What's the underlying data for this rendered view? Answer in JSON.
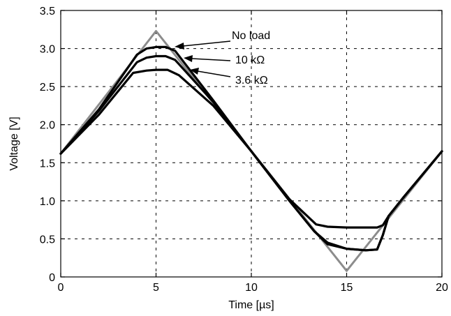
{
  "chart_data": {
    "type": "line",
    "title": "",
    "xlabel": "Time [µs]",
    "ylabel": "Voltage [V]",
    "xlim": [
      0,
      20
    ],
    "ylim": [
      0,
      3.5
    ],
    "xticks": [
      0,
      5,
      10,
      15,
      20
    ],
    "xtick_labels": [
      "0",
      "5",
      "10",
      "15",
      "20"
    ],
    "yticks": [
      0,
      0.5,
      1.0,
      1.5,
      2.0,
      2.5,
      3.0,
      3.5
    ],
    "ytick_labels": [
      "0",
      "0.5",
      "1.0",
      "1.5",
      "2.0",
      "2.5",
      "3.0",
      "3.5"
    ],
    "grid": true,
    "series": [
      {
        "color": "#8c8c8c",
        "x": [
          0,
          5,
          15,
          20
        ],
        "y": [
          1.62,
          3.23,
          0.08,
          1.65
        ]
      },
      {
        "color": "#000000",
        "x": [
          0,
          2,
          4,
          4.5,
          5,
          5.5,
          6,
          8,
          10,
          12,
          13.3,
          14,
          15,
          16,
          16.6,
          16.9,
          17.2,
          18,
          20
        ],
        "y": [
          1.62,
          2.2,
          2.92,
          3.0,
          3.02,
          3.02,
          2.97,
          2.32,
          1.65,
          1.0,
          0.6,
          0.45,
          0.37,
          0.35,
          0.36,
          0.55,
          0.8,
          1.05,
          1.65
        ]
      },
      {
        "color": "#000000",
        "x": [
          0,
          2,
          4,
          4.5,
          5,
          5.5,
          6,
          8,
          10,
          12,
          13.3,
          14,
          15,
          16,
          16.6,
          16.9,
          17.2,
          18,
          20
        ],
        "y": [
          1.62,
          2.18,
          2.82,
          2.88,
          2.9,
          2.9,
          2.85,
          2.3,
          1.65,
          1.0,
          0.6,
          0.43,
          0.37,
          0.35,
          0.36,
          0.55,
          0.8,
          1.05,
          1.65
        ]
      },
      {
        "color": "#000000",
        "x": [
          0,
          2,
          3.8,
          4.5,
          5,
          5.6,
          6.2,
          8,
          10,
          12,
          13.4,
          14,
          15,
          16,
          16.6,
          16.9,
          17.2,
          18,
          20
        ],
        "y": [
          1.62,
          2.13,
          2.68,
          2.71,
          2.72,
          2.72,
          2.65,
          2.25,
          1.65,
          1.02,
          0.69,
          0.66,
          0.65,
          0.65,
          0.65,
          0.68,
          0.8,
          1.05,
          1.65
        ]
      }
    ],
    "annotations": [
      {
        "text": "No load"
      },
      {
        "text": "10 kΩ"
      },
      {
        "text": "3.6 kΩ"
      }
    ]
  }
}
